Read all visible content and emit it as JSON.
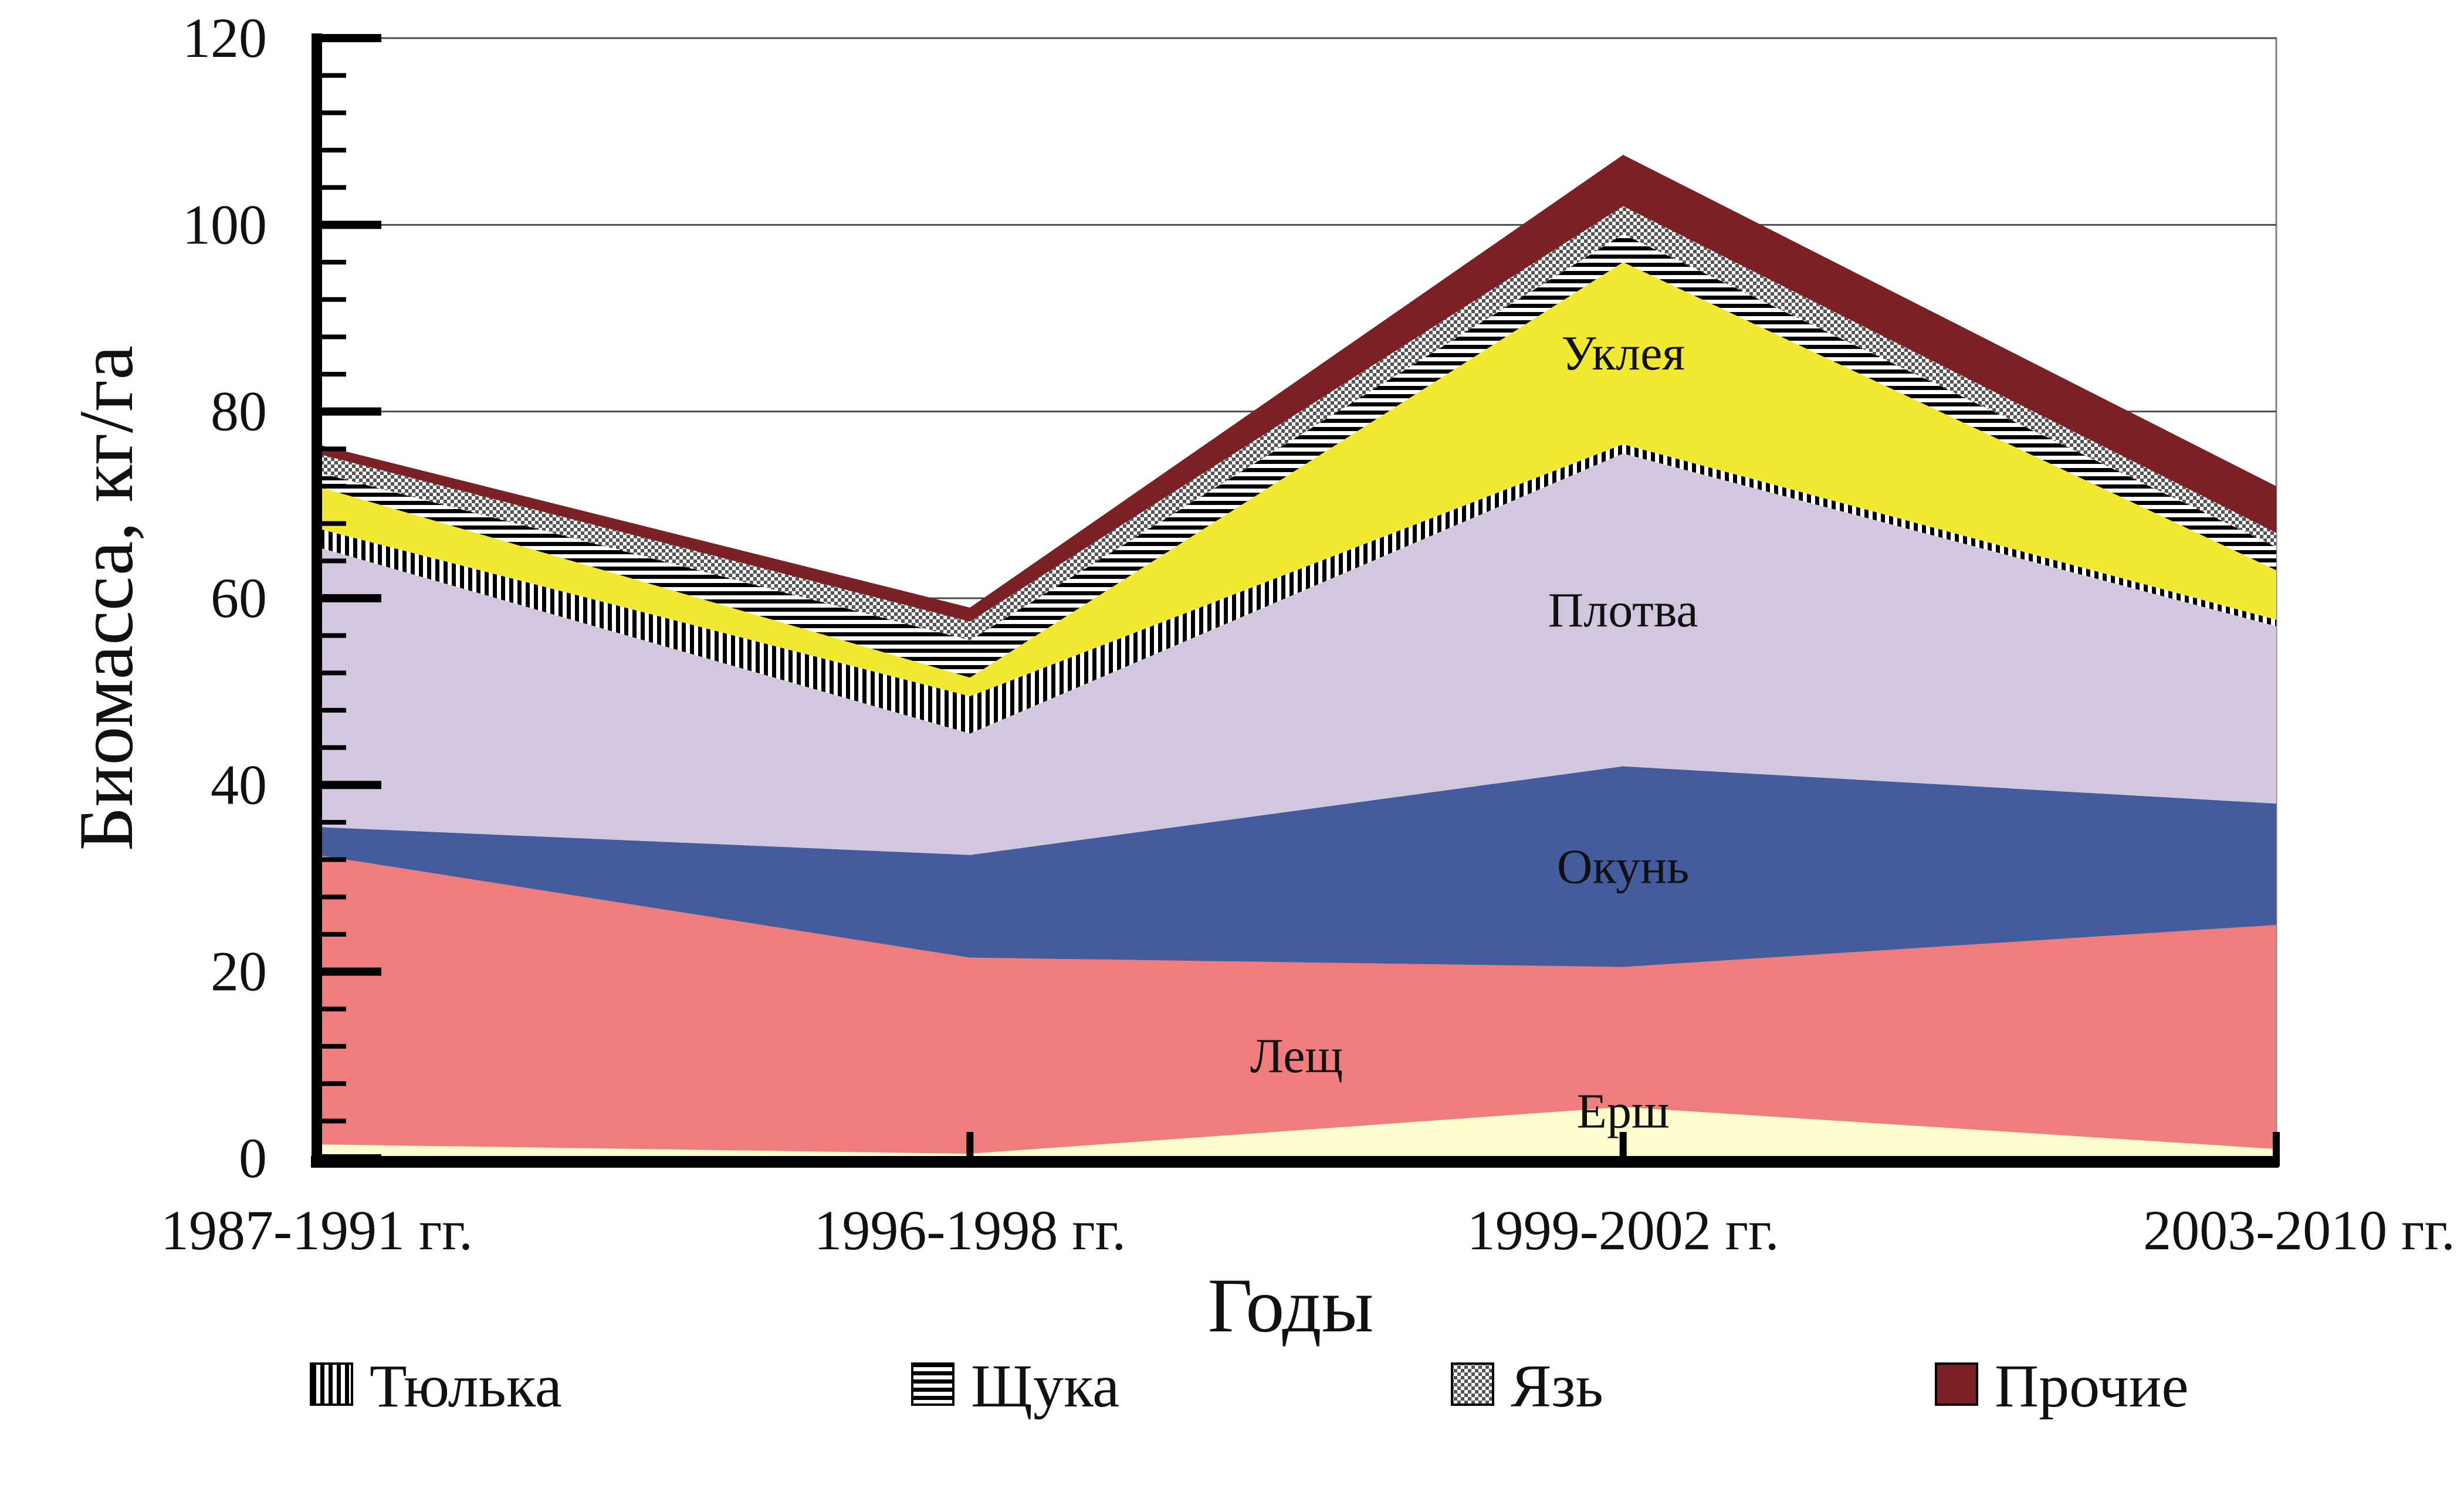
{
  "chart_data": {
    "type": "area",
    "stacked": true,
    "categories": [
      "1987-1991 гг.",
      "1996-1998 гг.",
      "1999-2002 гг.",
      "2003-2010 гг."
    ],
    "xlabel": "Годы",
    "ylabel": "Биомасса, кг/га",
    "ylim": [
      0,
      120
    ],
    "yticks": [
      0,
      20,
      40,
      60,
      80,
      100,
      120
    ],
    "grid": true,
    "legend_position": "bottom",
    "series": [
      {
        "name": "Ерш",
        "values": [
          1.5,
          0.5,
          5.5,
          1
        ],
        "color": "#fcfccc",
        "pattern": "none",
        "in_legend": false
      },
      {
        "name": "Лещ",
        "values": [
          31,
          21,
          15,
          24
        ],
        "color": "#f07d7d",
        "pattern": "none",
        "in_legend": false
      },
      {
        "name": "Окунь",
        "values": [
          3,
          11,
          21.5,
          13
        ],
        "color": "#445c9d",
        "pattern": "none",
        "in_legend": false
      },
      {
        "name": "Плотва",
        "values": [
          30,
          13,
          33.5,
          19
        ],
        "color": "#d3c7e0",
        "pattern": "none",
        "in_legend": false
      },
      {
        "name": "Тюлька",
        "values": [
          2,
          4,
          1,
          0.7
        ],
        "color": "#000000",
        "pattern": "vertical",
        "in_legend": true
      },
      {
        "name": "Уклея",
        "values": [
          4.5,
          2,
          19.5,
          5.3
        ],
        "color": "#f1e831",
        "pattern": "none",
        "in_legend": false
      },
      {
        "name": "Щука",
        "values": [
          1.5,
          4,
          3,
          2.5
        ],
        "color": "#000000",
        "pattern": "horizontal",
        "in_legend": true
      },
      {
        "name": "Язь",
        "values": [
          2,
          2,
          3,
          1.5
        ],
        "color": "#000000",
        "pattern": "dots",
        "in_legend": true
      },
      {
        "name": "Прочие",
        "values": [
          1,
          1.5,
          5.5,
          5
        ],
        "color": "#7b2125",
        "pattern": "none",
        "in_legend": true
      }
    ],
    "area_labels": [
      "Ерш",
      "Лещ",
      "Окунь",
      "Плотва",
      "Уклея"
    ]
  }
}
